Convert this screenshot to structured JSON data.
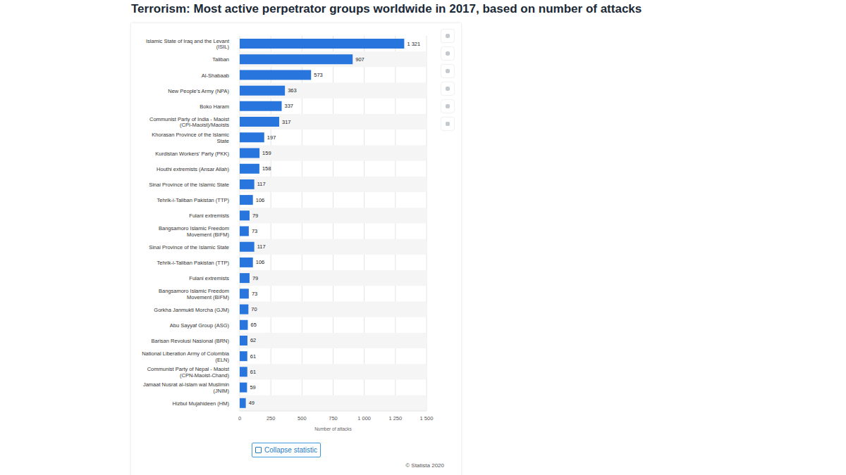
{
  "chart_data": {
    "type": "bar",
    "orientation": "horizontal",
    "title": "Terrorism: Most active perpetrator groups worldwide in 2017, based on number of attacks",
    "x_label": "Number of attacks",
    "categories": [
      "Islamic State of Iraq and the Levant (ISIL)",
      "Taliban",
      "Al-Shabaab",
      "New People's Army (NPA)",
      "Boko Haram",
      "Communist Party of India - Maoist (CPI-Maoist)/Maoists",
      "Khorasan Province of the Islamic State",
      "Kurdistan Workers' Party (PKK)",
      "Houthi extremists (Ansar Allah)",
      "Sinai Province of the Islamic State",
      "Tehrik-i-Taliban Pakistan (TTP)",
      "Fulani extremists",
      "Bangsamoro Islamic Freedom Movement (BIFM)",
      "Sinai Province of the Islamic State",
      "Tehrik-i-Taliban Pakistan (TTP)",
      "Fulani extremists",
      "Bangsamoro Islamic Freedom Movement (BIFM)",
      "Gorkha Janmukti Morcha (GJM)",
      "Abu Sayyaf Group (ASG)",
      "Barisan Revolusi Nasional (BRN)",
      "National Liberation Army of Colombia (ELN)",
      "Communist Party of Nepal - Maoist (CPN-Maoist-Chand)",
      "Jamaat Nusrat al-Islam wal Muslimin (JNIM)",
      "Hizbul Mujahideen (HM)"
    ],
    "values": [
      1321,
      907,
      573,
      363,
      337,
      317,
      197,
      159,
      158,
      117,
      106,
      79,
      73,
      117,
      106,
      79,
      73,
      70,
      65,
      62,
      61,
      61,
      59,
      49
    ],
    "value_labels": [
      "1 321",
      "907",
      "573",
      "363",
      "337",
      "317",
      "197",
      "159",
      "158",
      "117",
      "106",
      "79",
      "73",
      "117",
      "106",
      "79",
      "73",
      "70",
      "65",
      "62",
      "61",
      "61",
      "59",
      "49"
    ],
    "data_labels": true,
    "color": "#2876dd",
    "xlim": [
      0,
      1500
    ],
    "xticks": [
      0,
      250,
      500,
      750,
      {
        "value": 1000,
        "label": "1 000"
      },
      {
        "value": 1250,
        "label": "1 250"
      },
      {
        "value": 1500,
        "label": "1 500"
      }
    ],
    "grid": true,
    "legend": false
  },
  "footer": {
    "button": "Collapse statistic",
    "source": "© Statista 2020"
  }
}
